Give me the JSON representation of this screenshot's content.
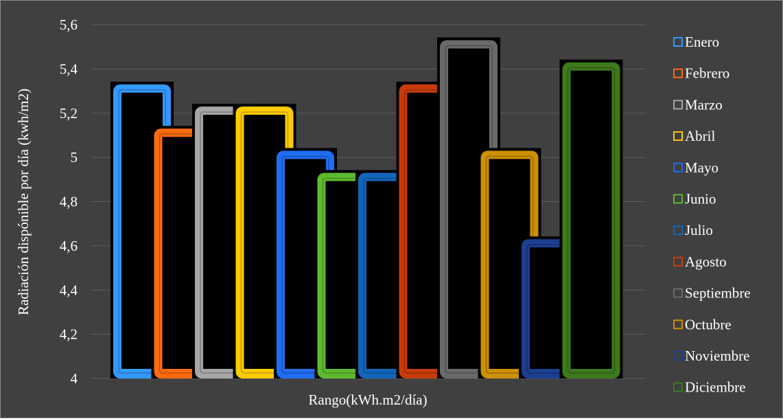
{
  "chart_data": {
    "type": "bar",
    "title": "",
    "xlabel": "Rango(kWh.m2/día)",
    "ylabel": "Radiación dispónible por día (kwh/m2)",
    "ylim": [
      4,
      5.6
    ],
    "yticks": [
      "4",
      "4,2",
      "4,4",
      "4,6",
      "4,8",
      "5",
      "5,2",
      "5,4",
      "5,6"
    ],
    "grid": true,
    "legend_position": "right",
    "series": [
      {
        "name": "Enero",
        "value": 5.33,
        "color": "#3399ff"
      },
      {
        "name": "Febrero",
        "value": 5.13,
        "color": "#ff6a0d"
      },
      {
        "name": "Marzo",
        "value": 5.23,
        "color": "#a6a6a6"
      },
      {
        "name": "Abril",
        "value": 5.23,
        "color": "#ffcc00"
      },
      {
        "name": "Mayo",
        "value": 5.03,
        "color": "#1f6df2"
      },
      {
        "name": "Junio",
        "value": 4.93,
        "color": "#5dba2e"
      },
      {
        "name": "Julio",
        "value": 4.93,
        "color": "#1166bb"
      },
      {
        "name": "Agosto",
        "value": 5.33,
        "color": "#c83c0a"
      },
      {
        "name": "Septiembre",
        "value": 5.53,
        "color": "#6a6a6a"
      },
      {
        "name": "Octubre",
        "value": 5.03,
        "color": "#cc9000"
      },
      {
        "name": "Noviembre",
        "value": 4.63,
        "color": "#1c3f8f"
      },
      {
        "name": "Diciembre",
        "value": 5.43,
        "color": "#3d7a1c"
      }
    ]
  }
}
